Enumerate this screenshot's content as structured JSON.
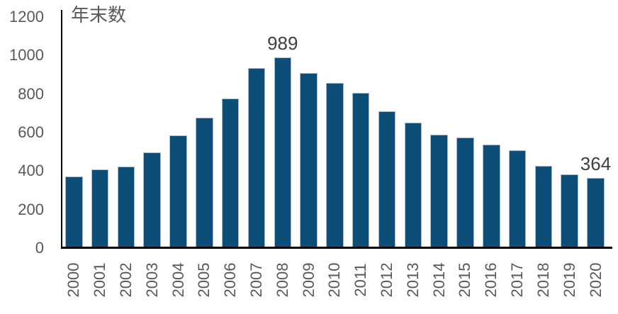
{
  "chart_data": {
    "type": "bar",
    "title": "年末数",
    "xlabel": "",
    "ylabel": "年末数",
    "categories": [
      "2000",
      "2001",
      "2002",
      "2003",
      "2004",
      "2005",
      "2006",
      "2007",
      "2008",
      "2009",
      "2010",
      "2011",
      "2012",
      "2013",
      "2014",
      "2015",
      "2016",
      "2017",
      "2018",
      "2019",
      "2020"
    ],
    "values": [
      370,
      408,
      425,
      497,
      585,
      678,
      777,
      936,
      989,
      908,
      856,
      805,
      709,
      652,
      589,
      576,
      539,
      509,
      427,
      382,
      364
    ],
    "data_labels": [
      {
        "category": "2008",
        "text": "989"
      },
      {
        "category": "2020",
        "text": "364"
      }
    ],
    "ylim": [
      0,
      1200
    ],
    "yticks": [
      0,
      200,
      400,
      600,
      800,
      1000,
      1200
    ],
    "ytick_interval": 200,
    "grid": false,
    "legend": "none",
    "x_tick_rotation_deg": 90,
    "colors": {
      "bar_fill": "#0d4e78",
      "bar_border": "#a9b9d2",
      "axis_line": "#000000",
      "tick_label": "#595959",
      "data_label": "#404040",
      "background": "#ffffff"
    }
  }
}
